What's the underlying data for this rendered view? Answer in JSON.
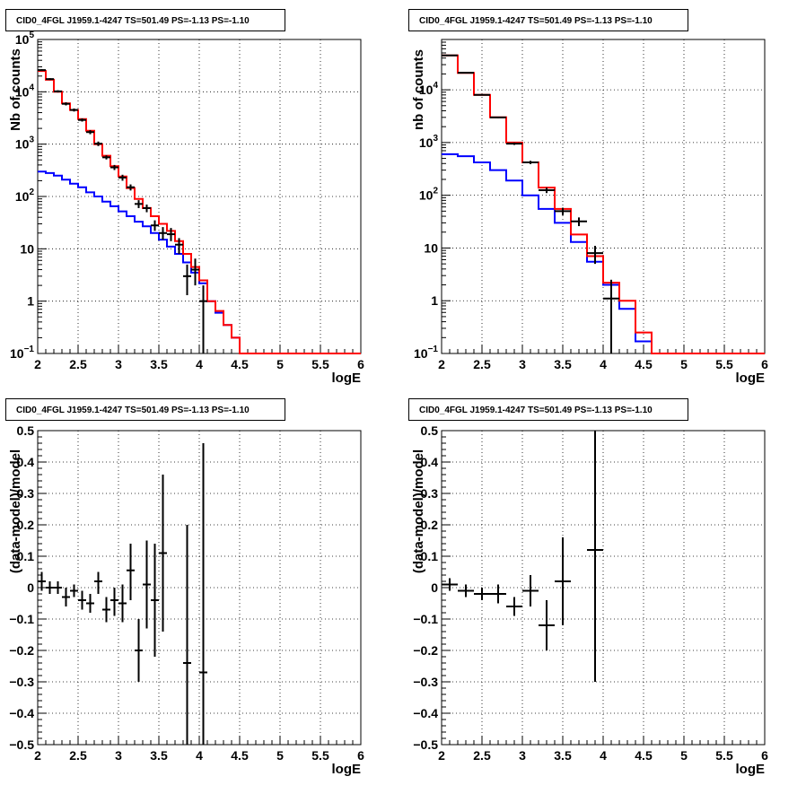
{
  "chart_data": [
    {
      "type": "step",
      "title": "CID0_4FGL J1959.1-4247 TS=501.49 PS=-1.13 PS=-1.10",
      "xlabel": "logE",
      "ylabel": "Nb of counts",
      "xlim": [
        2,
        6
      ],
      "ylim": [
        0.1,
        100000
      ],
      "yscale": "log",
      "grid": true,
      "x_ticks": [
        "2",
        "2.5",
        "3",
        "3.5",
        "4",
        "4.5",
        "5",
        "5.5",
        "6"
      ],
      "y_ticks": [
        {
          "v": 0.1,
          "label": "10",
          "sup": "−1"
        },
        {
          "v": 1,
          "label": "1"
        },
        {
          "v": 10,
          "label": "10"
        },
        {
          "v": 100,
          "label": "10",
          "sup": "2"
        },
        {
          "v": 1000,
          "label": "10",
          "sup": "3"
        },
        {
          "v": 10000,
          "label": "10",
          "sup": "4"
        },
        {
          "v": 100000,
          "label": "10",
          "sup": "5"
        }
      ],
      "bin_edges": [
        2.0,
        2.1,
        2.2,
        2.3,
        2.4,
        2.5,
        2.6,
        2.7,
        2.8,
        2.9,
        3.0,
        3.1,
        3.2,
        3.3,
        3.4,
        3.5,
        3.6,
        3.7,
        3.8,
        3.9,
        4.0,
        4.1,
        4.2,
        4.3,
        4.4,
        4.5,
        4.6,
        4.7,
        4.8,
        4.9,
        5.0,
        5.1,
        5.2,
        5.3,
        5.4,
        5.5,
        5.6,
        5.7,
        5.8,
        5.9,
        6.0
      ],
      "series": [
        {
          "color": "#ff0000",
          "values": [
            25000,
            17000,
            10000,
            6000,
            4500,
            3000,
            1800,
            1000,
            600,
            380,
            240,
            145,
            90,
            60,
            42,
            30,
            22,
            14,
            8,
            4.5,
            2.5,
            1.0,
            0.65,
            0.35,
            0.2,
            0.1,
            0.1,
            0.1,
            0.1,
            0.1,
            0.1,
            0.1,
            0.1,
            0.1,
            0.1,
            0.1,
            0.1,
            0.1,
            0.1,
            0.1
          ]
        },
        {
          "color": "#0000ff",
          "values": [
            300,
            280,
            250,
            210,
            175,
            150,
            120,
            100,
            80,
            65,
            52,
            42,
            33,
            27,
            20,
            15,
            11,
            8,
            5.5,
            3.5,
            2.2,
            1.0,
            0.6,
            0.35,
            0.2,
            0.1,
            0.1,
            0.1,
            0.1,
            0.1,
            0.1,
            0.1,
            0.1,
            0.1,
            0.1,
            0.1,
            0.1,
            0.1,
            0.1,
            0.1
          ]
        }
      ],
      "points": [
        {
          "x": 2.05,
          "y": 26000,
          "lo": 25000,
          "hi": 27000
        },
        {
          "x": 2.15,
          "y": 17500,
          "lo": 16800,
          "hi": 18200
        },
        {
          "x": 2.25,
          "y": 10200,
          "lo": 9700,
          "hi": 10700
        },
        {
          "x": 2.35,
          "y": 5900,
          "lo": 5500,
          "hi": 6300
        },
        {
          "x": 2.45,
          "y": 4500,
          "lo": 4200,
          "hi": 4800
        },
        {
          "x": 2.55,
          "y": 2900,
          "lo": 2700,
          "hi": 3100
        },
        {
          "x": 2.65,
          "y": 1700,
          "lo": 1550,
          "hi": 1850
        },
        {
          "x": 2.75,
          "y": 1020,
          "lo": 920,
          "hi": 1120
        },
        {
          "x": 2.85,
          "y": 560,
          "lo": 510,
          "hi": 610
        },
        {
          "x": 2.95,
          "y": 360,
          "lo": 320,
          "hi": 400
        },
        {
          "x": 3.05,
          "y": 230,
          "lo": 200,
          "hi": 260
        },
        {
          "x": 3.15,
          "y": 150,
          "lo": 130,
          "hi": 170
        },
        {
          "x": 3.25,
          "y": 72,
          "lo": 60,
          "hi": 85
        },
        {
          "x": 3.35,
          "y": 60,
          "lo": 50,
          "hi": 70
        },
        {
          "x": 3.45,
          "y": 28,
          "lo": 22,
          "hi": 35
        },
        {
          "x": 3.55,
          "y": 20,
          "lo": 15,
          "hi": 26
        },
        {
          "x": 3.65,
          "y": 19,
          "lo": 14,
          "hi": 25
        },
        {
          "x": 3.75,
          "y": 12,
          "lo": 8,
          "hi": 16
        },
        {
          "x": 3.85,
          "y": 3,
          "lo": 1.3,
          "hi": 5
        },
        {
          "x": 3.95,
          "y": 4,
          "lo": 2,
          "hi": 6.5
        },
        {
          "x": 4.05,
          "y": 1,
          "lo": 0.1,
          "hi": 2
        }
      ]
    },
    {
      "type": "step",
      "title": "CID0_4FGL J1959.1-4247 TS=501.49 PS=-1.13 PS=-1.10",
      "xlabel": "logE",
      "ylabel": "nb of counts",
      "xlim": [
        2,
        6
      ],
      "ylim": [
        0.1,
        90000
      ],
      "yscale": "log",
      "grid": true,
      "x_ticks": [
        "2",
        "2.5",
        "3",
        "3.5",
        "4",
        "4.5",
        "5",
        "5.5",
        "6"
      ],
      "y_ticks": [
        {
          "v": 0.1,
          "label": "10",
          "sup": "−1"
        },
        {
          "v": 1,
          "label": "1"
        },
        {
          "v": 10,
          "label": "10"
        },
        {
          "v": 100,
          "label": "10",
          "sup": "2"
        },
        {
          "v": 1000,
          "label": "10",
          "sup": "3"
        },
        {
          "v": 10000,
          "label": "10",
          "sup": "4"
        }
      ],
      "bin_edges": [
        2.0,
        2.2,
        2.4,
        2.6,
        2.8,
        3.0,
        3.2,
        3.4,
        3.6,
        3.8,
        4.0,
        4.2,
        4.4,
        4.6,
        4.8,
        5.0,
        5.2,
        5.4,
        5.6,
        5.8,
        6.0
      ],
      "series": [
        {
          "color": "#ff0000",
          "values": [
            45000,
            21000,
            8000,
            3000,
            1000,
            420,
            140,
            55,
            18,
            7,
            2.2,
            1.0,
            0.25,
            0.1,
            0.1,
            0.1,
            0.1,
            0.1,
            0.1,
            0.1
          ]
        },
        {
          "color": "#0000ff",
          "values": [
            600,
            550,
            420,
            300,
            190,
            100,
            55,
            30,
            13,
            5.5,
            2.0,
            0.7,
            0.17,
            0.1,
            0.1,
            0.1,
            0.1,
            0.1,
            0.1,
            0.1
          ]
        }
      ],
      "points": [
        {
          "x": 2.1,
          "y": 45000,
          "lo": 44000,
          "hi": 46000
        },
        {
          "x": 2.3,
          "y": 21000,
          "lo": 20500,
          "hi": 21500
        },
        {
          "x": 2.5,
          "y": 8000,
          "lo": 7800,
          "hi": 8200
        },
        {
          "x": 2.7,
          "y": 3000,
          "lo": 2900,
          "hi": 3100
        },
        {
          "x": 2.9,
          "y": 950,
          "lo": 900,
          "hi": 1000
        },
        {
          "x": 3.1,
          "y": 420,
          "lo": 390,
          "hi": 450
        },
        {
          "x": 3.3,
          "y": 125,
          "lo": 110,
          "hi": 140
        },
        {
          "x": 3.5,
          "y": 50,
          "lo": 42,
          "hi": 58
        },
        {
          "x": 3.7,
          "y": 32,
          "lo": 26,
          "hi": 38
        },
        {
          "x": 3.9,
          "y": 8,
          "lo": 5,
          "hi": 11
        },
        {
          "x": 4.1,
          "y": 1.1,
          "lo": 0.1,
          "hi": 2.5
        }
      ]
    },
    {
      "type": "errorbar",
      "title": "CID0_4FGL J1959.1-4247 TS=501.49 PS=-1.13 PS=-1.10",
      "xlabel": "logE",
      "ylabel": "(data-model)/model",
      "xlim": [
        2,
        6
      ],
      "ylim": [
        -0.5,
        0.5
      ],
      "grid": true,
      "x_ticks": [
        "2",
        "2.5",
        "3",
        "3.5",
        "4",
        "4.5",
        "5",
        "5.5",
        "6"
      ],
      "y_ticks": [
        "−0.5",
        "−0.4",
        "−0.3",
        "−0.2",
        "−0.1",
        "0",
        "0.1",
        "0.2",
        "0.3",
        "0.4",
        "0.5"
      ],
      "xerr": 0.05,
      "points": [
        {
          "x": 2.05,
          "y": 0.02,
          "lo": -0.01,
          "hi": 0.05
        },
        {
          "x": 2.15,
          "y": 0.0,
          "lo": -0.02,
          "hi": 0.02
        },
        {
          "x": 2.25,
          "y": 0.0,
          "lo": -0.02,
          "hi": 0.02
        },
        {
          "x": 2.35,
          "y": -0.03,
          "lo": -0.06,
          "hi": 0.0
        },
        {
          "x": 2.45,
          "y": -0.01,
          "lo": -0.03,
          "hi": 0.01
        },
        {
          "x": 2.55,
          "y": -0.04,
          "lo": -0.07,
          "hi": -0.01
        },
        {
          "x": 2.65,
          "y": -0.05,
          "lo": -0.08,
          "hi": -0.02
        },
        {
          "x": 2.75,
          "y": 0.02,
          "lo": -0.02,
          "hi": 0.05
        },
        {
          "x": 2.85,
          "y": -0.07,
          "lo": -0.11,
          "hi": -0.03
        },
        {
          "x": 2.95,
          "y": -0.04,
          "lo": -0.09,
          "hi": 0.0
        },
        {
          "x": 3.05,
          "y": -0.05,
          "lo": -0.11,
          "hi": 0.01
        },
        {
          "x": 3.15,
          "y": 0.055,
          "lo": -0.04,
          "hi": 0.14
        },
        {
          "x": 3.25,
          "y": -0.2,
          "lo": -0.3,
          "hi": -0.1
        },
        {
          "x": 3.35,
          "y": 0.01,
          "lo": -0.13,
          "hi": 0.15
        },
        {
          "x": 3.45,
          "y": -0.04,
          "lo": -0.22,
          "hi": 0.14
        },
        {
          "x": 3.55,
          "y": 0.11,
          "lo": -0.14,
          "hi": 0.36
        },
        {
          "x": 3.85,
          "y": -0.24,
          "lo": -0.5,
          "hi": 0.2
        },
        {
          "x": 4.05,
          "y": -0.27,
          "lo": -0.5,
          "hi": 0.46
        }
      ]
    },
    {
      "type": "errorbar",
      "title": "CID0_4FGL J1959.1-4247 TS=501.49 PS=-1.13 PS=-1.10",
      "xlabel": "logE",
      "ylabel": "(data-model)/model",
      "xlim": [
        2,
        6
      ],
      "ylim": [
        -0.5,
        0.5
      ],
      "grid": true,
      "x_ticks": [
        "2",
        "2.5",
        "3",
        "3.5",
        "4",
        "4.5",
        "5",
        "5.5",
        "6"
      ],
      "y_ticks": [
        "−0.5",
        "−0.4",
        "−0.3",
        "−0.2",
        "−0.1",
        "0",
        "0.1",
        "0.2",
        "0.3",
        "0.4",
        "0.5"
      ],
      "xerr": 0.1,
      "points": [
        {
          "x": 2.1,
          "y": 0.01,
          "lo": -0.01,
          "hi": 0.03
        },
        {
          "x": 2.3,
          "y": -0.01,
          "lo": -0.03,
          "hi": 0.01
        },
        {
          "x": 2.5,
          "y": -0.02,
          "lo": -0.04,
          "hi": 0.0
        },
        {
          "x": 2.7,
          "y": -0.02,
          "lo": -0.05,
          "hi": 0.01
        },
        {
          "x": 2.9,
          "y": -0.06,
          "lo": -0.09,
          "hi": -0.03
        },
        {
          "x": 3.1,
          "y": -0.01,
          "lo": -0.06,
          "hi": 0.04
        },
        {
          "x": 3.3,
          "y": -0.12,
          "lo": -0.2,
          "hi": -0.04
        },
        {
          "x": 3.5,
          "y": 0.02,
          "lo": -0.12,
          "hi": 0.16
        },
        {
          "x": 3.9,
          "y": 0.12,
          "lo": -0.3,
          "hi": 0.5
        }
      ]
    }
  ]
}
